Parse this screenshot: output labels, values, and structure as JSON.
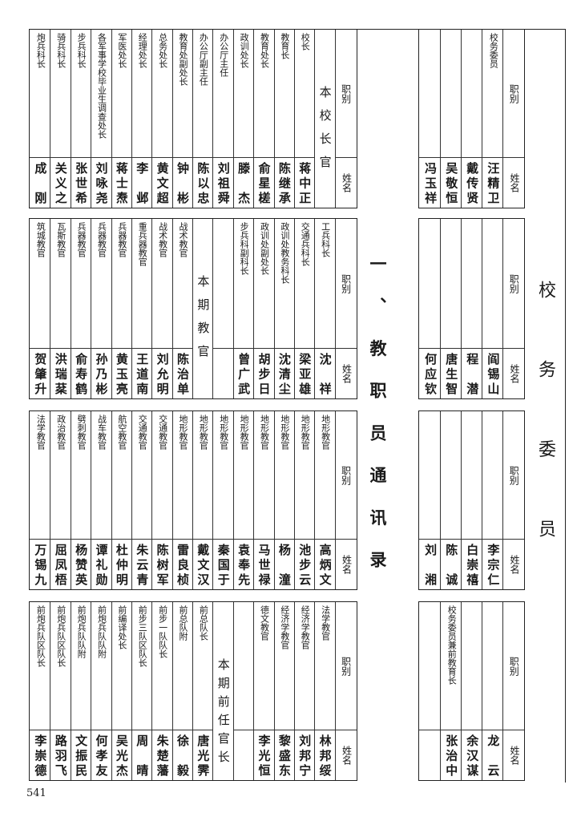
{
  "page_number": "541",
  "section_title": "一、教职员通讯录",
  "committee_title": "校务委员",
  "labels": {
    "job": "职别",
    "name": "姓名"
  },
  "staff_bands": [
    {
      "columns": [
        {
          "span": "本校长官"
        },
        {
          "job": "校长",
          "name": "蒋中正"
        },
        {
          "job": "教育长",
          "name": "陈继承"
        },
        {
          "job": "教育处长",
          "name": "俞星槎"
        },
        {
          "job": "政训处长",
          "name": "滕杰"
        },
        {
          "job": "办公厅主任",
          "name": "刘祖舜"
        },
        {
          "job": "办公厅副主任",
          "name": "陈以忠"
        },
        {
          "job": "教育处副处长",
          "name": "钟彬"
        },
        {
          "job": "总务处长",
          "name": "黄文超"
        },
        {
          "job": "经理处长",
          "name": "李邺"
        },
        {
          "job": "军医处长",
          "name": "蒋士焘"
        },
        {
          "job": "各军事学校毕业生调查处长",
          "name": "刘咏尧"
        },
        {
          "job": "步兵科长",
          "name": "张世希"
        },
        {
          "job": "骑兵科长",
          "name": "关义之"
        },
        {
          "job": "炮兵科长",
          "name": "成刚"
        }
      ]
    },
    {
      "columns": [
        {
          "job": "工兵科长",
          "name": "沈祥"
        },
        {
          "job": "交通兵科长",
          "name": "梁亚雄"
        },
        {
          "job": "政训处教务科长",
          "name": "沈清尘"
        },
        {
          "job": "政训处副处长",
          "name": "胡步日"
        },
        {
          "job": "步兵科副科长",
          "name": "曾广武"
        },
        {
          "empty": true
        },
        {
          "span": "本期教官"
        },
        {
          "job": "战术教官",
          "name": "陈治单"
        },
        {
          "job": "战术教官",
          "name": "刘允明"
        },
        {
          "job": "重兵器教官",
          "name": "王道南"
        },
        {
          "job": "兵器教官",
          "name": "黄玉亮"
        },
        {
          "job": "兵器教官",
          "name": "孙乃彬"
        },
        {
          "job": "兵器教官",
          "name": "俞寿鹤"
        },
        {
          "job": "瓦斯教官",
          "name": "洪瑞棻"
        },
        {
          "job": "筑城教官",
          "name": "贺肇升"
        }
      ]
    },
    {
      "columns": [
        {
          "job": "地形教官",
          "name": "高炳文"
        },
        {
          "job": "地形教官",
          "name": "池步云"
        },
        {
          "job": "地形教官",
          "name": "杨潼"
        },
        {
          "job": "地形教官",
          "name": "马世禄"
        },
        {
          "job": "地形教官",
          "name": "袁奉先"
        },
        {
          "job": "地形教官",
          "name": "秦国于"
        },
        {
          "job": "地形教官",
          "name": "戴文汉"
        },
        {
          "job": "地形教官",
          "name": "雷良桢"
        },
        {
          "job": "交通教官",
          "name": "陈树军"
        },
        {
          "job": "交通教官",
          "name": "朱云青"
        },
        {
          "job": "航空教官",
          "name": "杜仲明"
        },
        {
          "job": "战车教官",
          "name": "谭礼勋"
        },
        {
          "job": "劈刺教官",
          "name": "杨赞英"
        },
        {
          "job": "政治教官",
          "name": "屈凤梧"
        },
        {
          "job": "法学教官",
          "name": "万锡九"
        }
      ]
    },
    {
      "columns": [
        {
          "job": "法学教官",
          "name": "林邦绥"
        },
        {
          "job": "经济学教官",
          "name": "刘邦宁"
        },
        {
          "job": "经济学教官",
          "name": "黎盛东"
        },
        {
          "job": "德文教官",
          "name": "李光恒"
        },
        {
          "empty": true
        },
        {
          "span": "本期前任官长"
        },
        {
          "job": "前总队长",
          "name": "唐光霁"
        },
        {
          "job": "前总队附",
          "name": "徐毅"
        },
        {
          "job": "前步一队队长",
          "name": "朱楚藩"
        },
        {
          "job": "前步三队区队长",
          "name": "周晴"
        },
        {
          "job": "前编译处长",
          "name": "吴光杰"
        },
        {
          "job": "前炮兵队队附",
          "name": "何孝友"
        },
        {
          "job": "前炮兵队队附",
          "name": "文振民"
        },
        {
          "job": "前炮兵队区队长",
          "name": "路羽飞"
        },
        {
          "job": "前炮兵队区队长",
          "name": "李崇德"
        }
      ]
    }
  ],
  "committee_bands": [
    {
      "columns": [
        {
          "job": "校务委员",
          "name": "汪精卫"
        },
        {
          "job": "",
          "name": "戴传贤"
        },
        {
          "job": "",
          "name": "吴敬恒"
        },
        {
          "job": "",
          "name": "冯玉祥"
        }
      ]
    },
    {
      "columns": [
        {
          "job": "",
          "name": "阎锡山"
        },
        {
          "job": "",
          "name": "程潜"
        },
        {
          "job": "",
          "name": "唐生智"
        },
        {
          "job": "",
          "name": "何应钦"
        }
      ]
    },
    {
      "columns": [
        {
          "job": "",
          "name": "李宗仁"
        },
        {
          "job": "",
          "name": "白崇禧"
        },
        {
          "job": "",
          "name": "陈诚"
        },
        {
          "job": "",
          "name": "刘湘"
        }
      ]
    },
    {
      "columns": [
        {
          "job": "",
          "name": "龙云"
        },
        {
          "job": "",
          "name": "余汉谋"
        },
        {
          "job": "校务委员兼前教育长",
          "name": "张治中"
        },
        {
          "job": "",
          "name": ""
        }
      ]
    }
  ]
}
